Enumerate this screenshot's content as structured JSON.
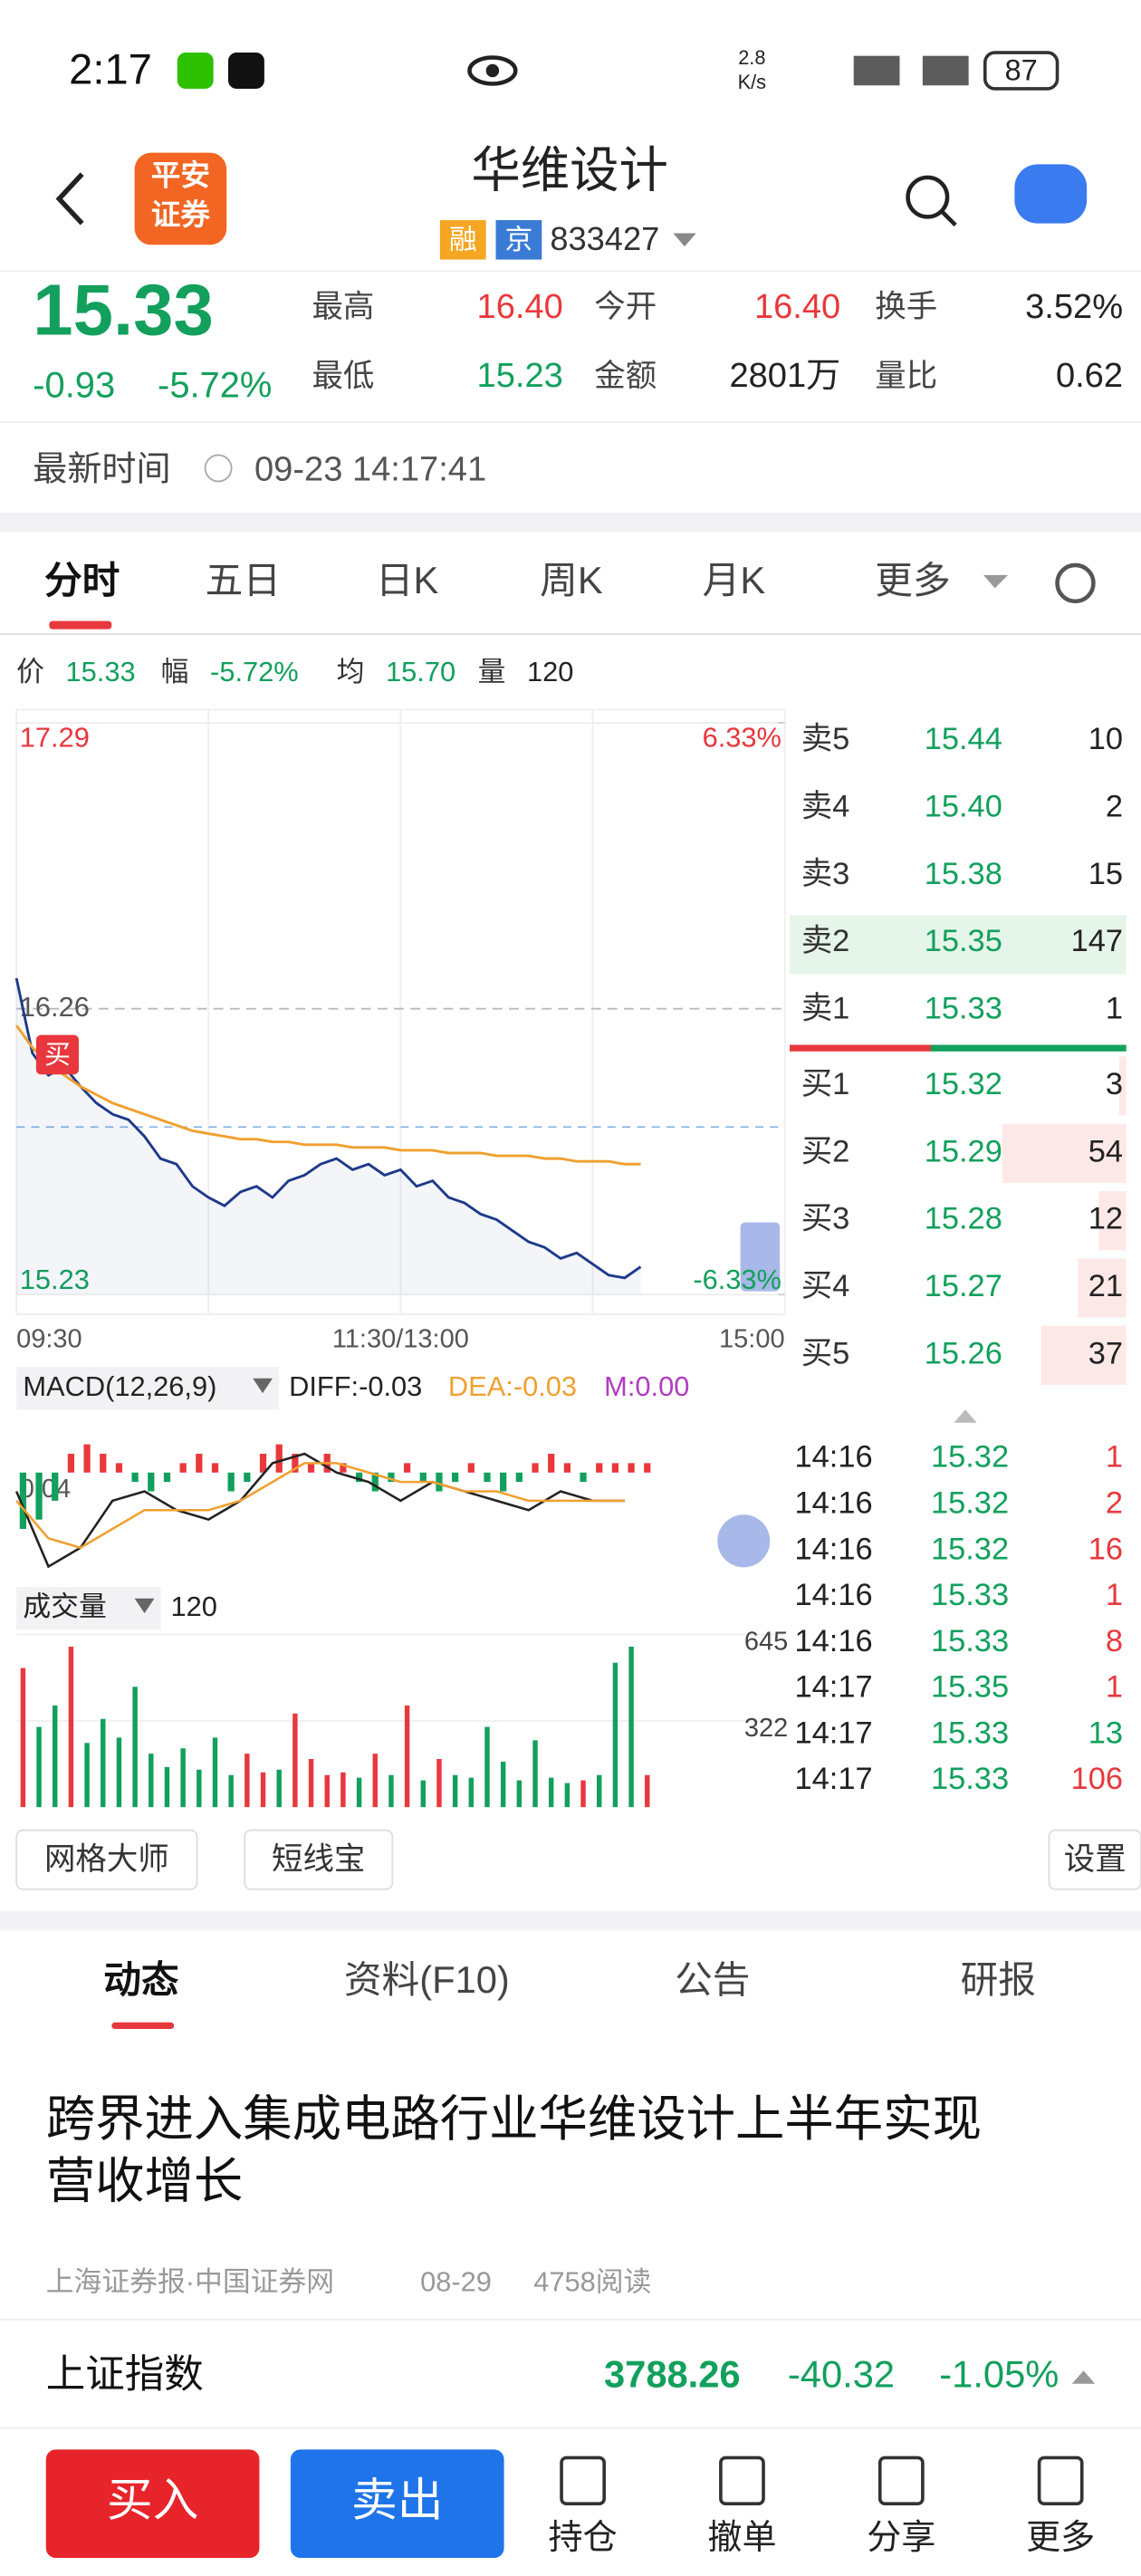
{
  "status_bar": {
    "time": "2:17",
    "net_speed": [
      "2.8",
      "K/s"
    ],
    "battery": "87"
  },
  "header": {
    "logo": [
      "平安",
      "证券"
    ],
    "title": "华维设计",
    "tags": [
      "融",
      "京"
    ],
    "code": "833427"
  },
  "quote": {
    "price": "15.33",
    "change": "-0.93",
    "change_pct": "-5.72%",
    "stats": [
      {
        "label": "最高",
        "value": "16.40",
        "color": "#e8383d"
      },
      {
        "label": "今开",
        "value": "16.40",
        "color": "#e8383d"
      },
      {
        "label": "换手",
        "value": "3.52%",
        "color": "#222222"
      },
      {
        "label": "最低",
        "value": "15.23",
        "color": "#12a05c"
      },
      {
        "label": "金额",
        "value": "2801万",
        "color": "#222222"
      },
      {
        "label": "量比",
        "value": "0.62",
        "color": "#222222"
      }
    ]
  },
  "update": {
    "label": "最新时间",
    "time": "09-23 14:17:41"
  },
  "chart_tabs": [
    "分时",
    "五日",
    "日K",
    "周K",
    "月K",
    "更多"
  ],
  "info": [
    {
      "label": "价",
      "value": "15.33",
      "color": "#12a05c"
    },
    {
      "label": "幅",
      "value": "-5.72%",
      "color": "#12a05c"
    },
    {
      "label": "均",
      "value": "15.70",
      "color": "#12a05c"
    },
    {
      "label": "量",
      "value": "120",
      "color": "#222222"
    }
  ],
  "intraday": {
    "type": "line",
    "ylim": [
      15.23,
      17.29
    ],
    "yticks": [
      15.23,
      16.26,
      17.29
    ],
    "y2lim": [
      -6.33,
      6.33
    ],
    "y2ticks": [
      {
        "value": -6.33,
        "label": "-6.33%"
      },
      {
        "value": 6.33,
        "label": "6.33%"
      }
    ],
    "x_labels": [
      "09:30",
      "11:30/13:00",
      "15:00"
    ],
    "marker": "买",
    "series": [
      {
        "color": "#1e3a8a",
        "values": [
          16.37,
          16.1,
          16.02,
          16.05,
          15.98,
          15.92,
          15.88,
          15.86,
          15.8,
          15.72,
          15.7,
          15.62,
          15.58,
          15.55,
          15.6,
          15.62,
          15.58,
          15.64,
          15.66,
          15.7,
          15.72,
          15.68,
          15.7,
          15.66,
          15.68,
          15.62,
          15.64,
          15.58,
          15.56,
          15.52,
          15.5,
          15.46,
          15.42,
          15.4,
          15.36,
          15.38,
          15.34,
          15.3,
          15.29,
          15.33
        ]
      },
      {
        "color": "#f0a030",
        "values": [
          16.2,
          16.12,
          16.06,
          16.02,
          15.98,
          15.95,
          15.92,
          15.9,
          15.88,
          15.86,
          15.84,
          15.82,
          15.81,
          15.8,
          15.79,
          15.79,
          15.78,
          15.78,
          15.77,
          15.77,
          15.77,
          15.76,
          15.76,
          15.76,
          15.75,
          15.75,
          15.75,
          15.74,
          15.74,
          15.74,
          15.73,
          15.73,
          15.73,
          15.72,
          15.72,
          15.71,
          15.71,
          15.71,
          15.7,
          15.7
        ]
      }
    ]
  },
  "order_book": {
    "sells": [
      {
        "label": "卖5",
        "price": "15.44",
        "volume": 10
      },
      {
        "label": "卖4",
        "price": "15.40",
        "volume": 2
      },
      {
        "label": "卖3",
        "price": "15.38",
        "volume": 15
      },
      {
        "label": "卖2",
        "price": "15.35",
        "volume": 147
      },
      {
        "label": "卖1",
        "price": "15.33",
        "volume": 1
      }
    ],
    "buys": [
      {
        "label": "买1",
        "price": "15.32",
        "volume": 3
      },
      {
        "label": "买2",
        "price": "15.29",
        "volume": 54
      },
      {
        "label": "买3",
        "price": "15.28",
        "volume": 12
      },
      {
        "label": "买4",
        "price": "15.27",
        "volume": 21
      },
      {
        "label": "买5",
        "price": "15.26",
        "volume": 37
      }
    ]
  },
  "trades": [
    {
      "time": "14:16",
      "price": "15.32",
      "volume": 1,
      "color": "#e8383d"
    },
    {
      "time": "14:16",
      "price": "15.32",
      "volume": 2,
      "color": "#e8383d"
    },
    {
      "time": "14:16",
      "price": "15.32",
      "volume": 16,
      "color": "#e8383d"
    },
    {
      "time": "14:16",
      "price": "15.33",
      "volume": 1,
      "color": "#e8383d"
    },
    {
      "time": "14:16",
      "price": "15.33",
      "volume": 8,
      "color": "#e8383d"
    },
    {
      "time": "14:17",
      "price": "15.35",
      "volume": 1,
      "color": "#e8383d"
    },
    {
      "time": "14:17",
      "price": "15.33",
      "volume": 13,
      "color": "#12a05c"
    },
    {
      "time": "14:17",
      "price": "15.33",
      "volume": 106,
      "color": "#e8383d"
    }
  ],
  "macd": {
    "label": "MACD(12,26,9)",
    "diff_label": "DIFF:-0.03",
    "dea_label": "DEA:-0.03",
    "m_label": "M:0.00",
    "axis_label": "0.04",
    "ylim": [
      -0.12,
      0.06
    ],
    "histogram": [
      -0.06,
      -0.05,
      -0.03,
      0.02,
      0.03,
      0.02,
      0.01,
      -0.01,
      -0.02,
      -0.01,
      0.01,
      0.02,
      0.01,
      -0.02,
      -0.01,
      0.02,
      0.03,
      0.02,
      0.01,
      0.02,
      0.01,
      -0.01,
      -0.02,
      -0.01,
      0.01,
      -0.01,
      -0.02,
      -0.01,
      0.01,
      -0.01,
      -0.02,
      -0.01,
      0.01,
      0.02,
      0.01,
      -0.01,
      0.01,
      0.01,
      0.01,
      0.01
    ],
    "diff": [
      -0.02,
      -0.1,
      -0.08,
      -0.03,
      -0.02,
      -0.04,
      -0.05,
      -0.03,
      0.01,
      0.02,
      0.0,
      -0.01,
      -0.03,
      -0.01,
      -0.02,
      -0.03,
      -0.04,
      -0.02,
      -0.03,
      -0.03
    ],
    "dea": [
      -0.03,
      -0.07,
      -0.08,
      -0.06,
      -0.04,
      -0.04,
      -0.04,
      -0.03,
      -0.01,
      0.01,
      0.01,
      0.0,
      -0.01,
      -0.01,
      -0.02,
      -0.02,
      -0.03,
      -0.03,
      -0.03,
      -0.03
    ],
    "colors": {
      "up": "#e8383d",
      "down": "#12a05c",
      "diff": "#222222",
      "dea": "#f0a030"
    }
  },
  "volume": {
    "label": "成交量",
    "value": "120",
    "ylim": [
      0,
      645
    ],
    "yticks": [
      322,
      645
    ],
    "colors": {
      "up": "#e8383d",
      "down": "#12a05c"
    },
    "values": [
      520,
      300,
      380,
      600,
      240,
      330,
      260,
      450,
      200,
      150,
      220,
      140,
      260,
      120,
      200,
      130,
      140,
      350,
      180,
      120,
      130,
      110,
      200,
      120,
      380,
      100,
      180,
      120,
      110,
      300,
      170,
      100,
      250,
      110,
      90,
      100,
      120,
      540,
      600,
      120
    ]
  },
  "tools": [
    "网格大师",
    "短线宝",
    "设置"
  ],
  "news_tabs": [
    "动态",
    "资料(F10)",
    "公告",
    "研报"
  ],
  "news": {
    "title": [
      "跨界进入集成电路行业华维设计上半年实现",
      "营收增长"
    ],
    "source": "上海证券报·中国证券网",
    "date": "08-29",
    "reads": "4758阅读"
  },
  "index": {
    "name": "上证指数",
    "value": "3788.26",
    "change": "-40.32",
    "change_pct": "-1.05%"
  },
  "actions": {
    "buy": "买入",
    "sell": "卖出",
    "nav": [
      "持仓",
      "撤单",
      "分享",
      "更多"
    ]
  }
}
